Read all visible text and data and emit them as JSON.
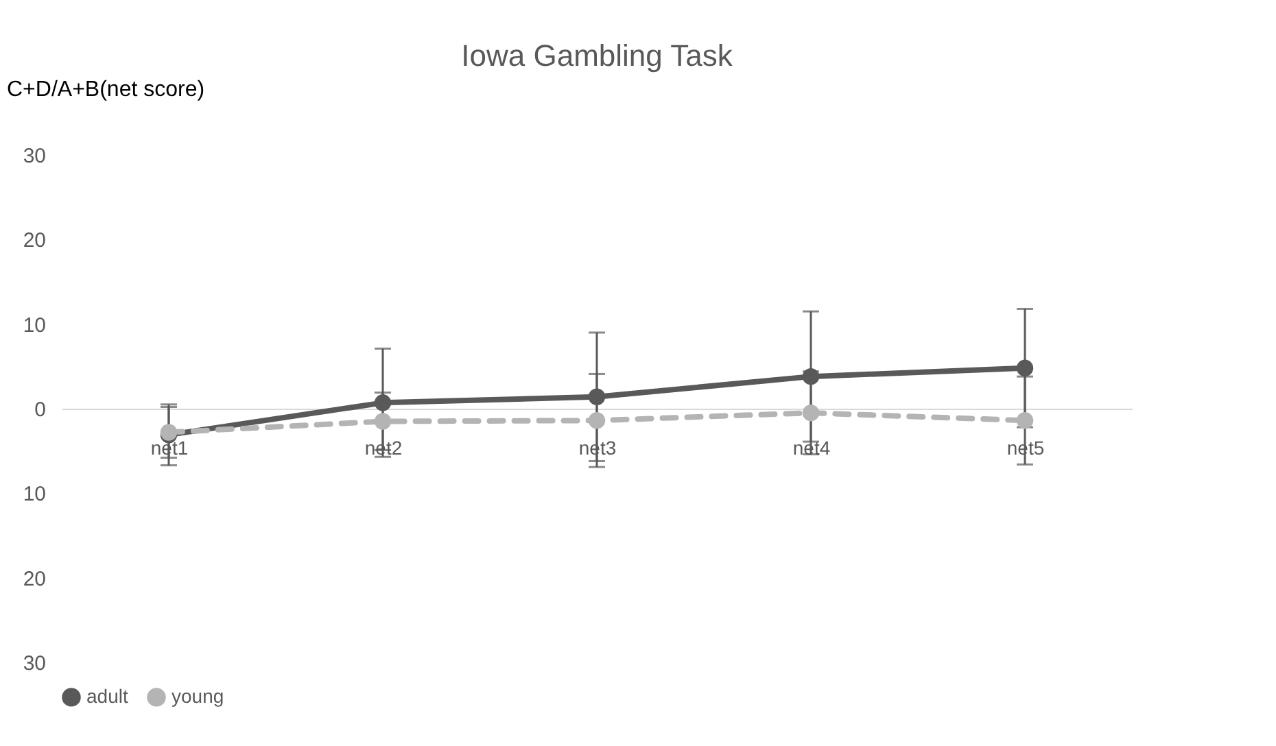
{
  "chart_data": {
    "type": "line",
    "title": "Iowa Gambling Task",
    "ylabel": "C+D/A+B(net score)",
    "categories": [
      "net1",
      "net2",
      "net3",
      "net4",
      "net5"
    ],
    "series": [
      {
        "name": "adult",
        "color": "#595959",
        "values": [
          -3.1,
          0.7,
          1.4,
          3.8,
          4.8
        ],
        "errors": [
          3.6,
          6.4,
          7.6,
          7.7,
          7.0
        ],
        "line_style": "solid"
      },
      {
        "name": "young",
        "color": "#b4b4b4",
        "values": [
          -2.8,
          -1.5,
          -1.4,
          -0.5,
          -1.4
        ],
        "errors": [
          3.0,
          3.4,
          5.5,
          4.9,
          5.2
        ],
        "line_style": "dashed"
      }
    ],
    "ylim": [
      -30,
      30
    ],
    "yticks": [
      {
        "value": -30,
        "label": "30"
      },
      {
        "value": -20,
        "label": "20"
      },
      {
        "value": -10,
        "label": "10"
      },
      0,
      10,
      20,
      30
    ],
    "marker": "circle",
    "grid": false,
    "legend": "bottom"
  }
}
